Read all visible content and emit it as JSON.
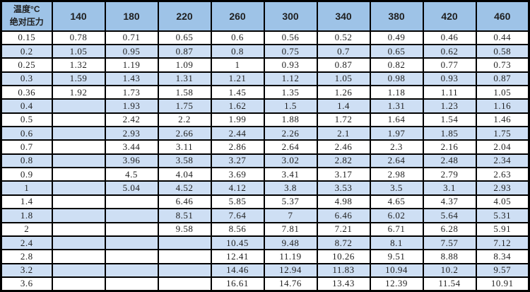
{
  "colors": {
    "header_bg": "#9EC3E7",
    "stripe_bg": "#CEDFF4",
    "row_bg": "#FFFFFF",
    "border": "#000000",
    "text": "#1F1F1F"
  },
  "table": {
    "corner": {
      "top": "温度°C",
      "bottom": "绝对压力"
    },
    "columns": [
      "140",
      "180",
      "220",
      "260",
      "300",
      "340",
      "380",
      "420",
      "460"
    ],
    "rows": [
      {
        "pressure": "0.15",
        "values": [
          "0.78",
          "0.71",
          "0.65",
          "0.6",
          "0.56",
          "0.52",
          "0.49",
          "0.46",
          "0.44"
        ]
      },
      {
        "pressure": "0.2",
        "values": [
          "1.05",
          "0.95",
          "0.87",
          "0.8",
          "0.75",
          "0.7",
          "0.65",
          "0.62",
          "0.58"
        ]
      },
      {
        "pressure": "0.25",
        "values": [
          "1.32",
          "1.19",
          "1.09",
          "1",
          "0.93",
          "0.87",
          "0.82",
          "0.77",
          "0.73"
        ]
      },
      {
        "pressure": "0.3",
        "values": [
          "1.59",
          "1.43",
          "1.31",
          "1.21",
          "1.12",
          "1.05",
          "0.98",
          "0.93",
          "0.87"
        ]
      },
      {
        "pressure": "0.36",
        "values": [
          "1.92",
          "1.73",
          "1.58",
          "1.45",
          "1.35",
          "1.26",
          "1.18",
          "1.11",
          "1.05"
        ]
      },
      {
        "pressure": "0.4",
        "values": [
          "",
          "1.93",
          "1.75",
          "1.62",
          "1.5",
          "1.4",
          "1.31",
          "1.23",
          "1.16"
        ]
      },
      {
        "pressure": "0.5",
        "values": [
          "",
          "2.42",
          "2.2",
          "1.99",
          "1.88",
          "1.72",
          "1.64",
          "1.54",
          "1.46"
        ]
      },
      {
        "pressure": "0.6",
        "values": [
          "",
          "2.93",
          "2.66",
          "2.44",
          "2.26",
          "2.1",
          "1.97",
          "1.85",
          "1.75"
        ]
      },
      {
        "pressure": "0.7",
        "values": [
          "",
          "3.44",
          "3.11",
          "2.86",
          "2.64",
          "2.46",
          "2.3",
          "2.16",
          "2.04"
        ]
      },
      {
        "pressure": "0.8",
        "values": [
          "",
          "3.96",
          "3.58",
          "3.27",
          "3.02",
          "2.82",
          "2.64",
          "2.48",
          "2.34"
        ]
      },
      {
        "pressure": "0.9",
        "values": [
          "",
          "4.5",
          "4.04",
          "3.69",
          "3.41",
          "3.17",
          "2.98",
          "2.79",
          "2.63"
        ]
      },
      {
        "pressure": "1",
        "values": [
          "",
          "5.04",
          "4.52",
          "4.12",
          "3.8",
          "3.53",
          "3.5",
          "3.1",
          "2.93"
        ]
      },
      {
        "pressure": "1.4",
        "values": [
          "",
          "",
          "6.46",
          "5.85",
          "5.37",
          "4.98",
          "4.65",
          "4.37",
          "4.05"
        ]
      },
      {
        "pressure": "1.8",
        "values": [
          "",
          "",
          "8.51",
          "7.64",
          "7",
          "6.46",
          "6.02",
          "5.64",
          "5.31"
        ]
      },
      {
        "pressure": "2",
        "values": [
          "",
          "",
          "9.58",
          "8.56",
          "7.81",
          "7.21",
          "6.71",
          "6.28",
          "5.91"
        ]
      },
      {
        "pressure": "2.4",
        "values": [
          "",
          "",
          "",
          "10.45",
          "9.48",
          "8.72",
          "8.1",
          "7.57",
          "7.12"
        ]
      },
      {
        "pressure": "2.8",
        "values": [
          "",
          "",
          "",
          "12.41",
          "11.19",
          "10.26",
          "9.51",
          "8.88",
          "8.34"
        ]
      },
      {
        "pressure": "3.2",
        "values": [
          "",
          "",
          "",
          "14.46",
          "12.94",
          "11.83",
          "10.94",
          "10.2",
          "9.57"
        ]
      },
      {
        "pressure": "3.6",
        "values": [
          "",
          "",
          "",
          "16.61",
          "14.76",
          "13.43",
          "12.39",
          "11.54",
          "10.91"
        ]
      }
    ]
  }
}
